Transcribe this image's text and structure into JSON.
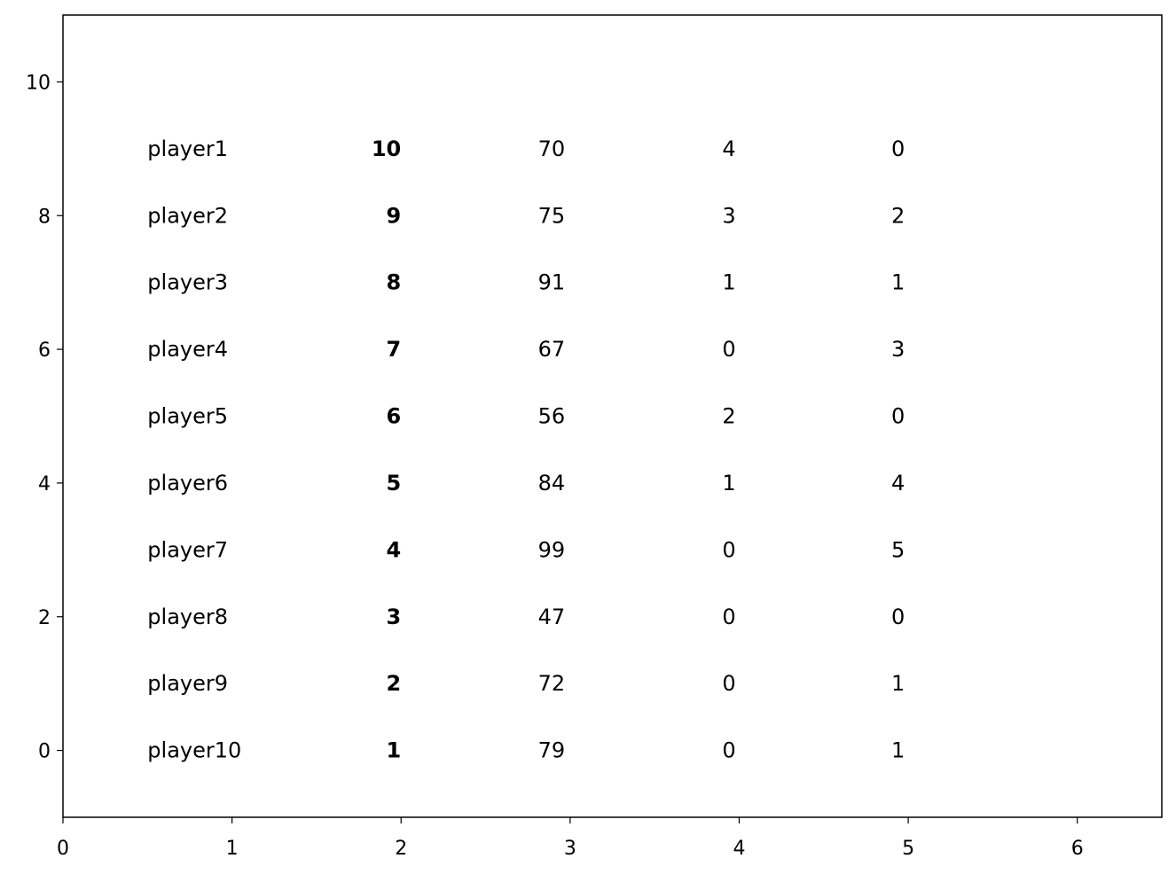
{
  "chart_data": {
    "type": "table",
    "title": "",
    "xlabel": "",
    "ylabel": "",
    "xlim": [
      0,
      6.5
    ],
    "ylim": [
      -1,
      11
    ],
    "xticks": [
      "0",
      "1",
      "2",
      "3",
      "4",
      "5",
      "6"
    ],
    "yticks": [
      "0",
      "2",
      "4",
      "6",
      "8",
      "10"
    ],
    "grid": false,
    "rows": [
      {
        "y": 9,
        "cells": [
          "player1",
          "10",
          "70",
          "4",
          "0"
        ]
      },
      {
        "y": 8,
        "cells": [
          "player2",
          "9",
          "75",
          "3",
          "2"
        ]
      },
      {
        "y": 7,
        "cells": [
          "player3",
          "8",
          "91",
          "1",
          "1"
        ]
      },
      {
        "y": 6,
        "cells": [
          "player4",
          "7",
          "67",
          "0",
          "3"
        ]
      },
      {
        "y": 5,
        "cells": [
          "player5",
          "6",
          "56",
          "2",
          "0"
        ]
      },
      {
        "y": 4,
        "cells": [
          "player6",
          "5",
          "84",
          "1",
          "4"
        ]
      },
      {
        "y": 3,
        "cells": [
          "player7",
          "4",
          "99",
          "0",
          "5"
        ]
      },
      {
        "y": 2,
        "cells": [
          "player8",
          "3",
          "47",
          "0",
          "0"
        ]
      },
      {
        "y": 1,
        "cells": [
          "player9",
          "2",
          "72",
          "0",
          "1"
        ]
      },
      {
        "y": 0,
        "cells": [
          "player10",
          "1",
          "79",
          "0",
          "1"
        ]
      }
    ],
    "bold_column": 1
  }
}
